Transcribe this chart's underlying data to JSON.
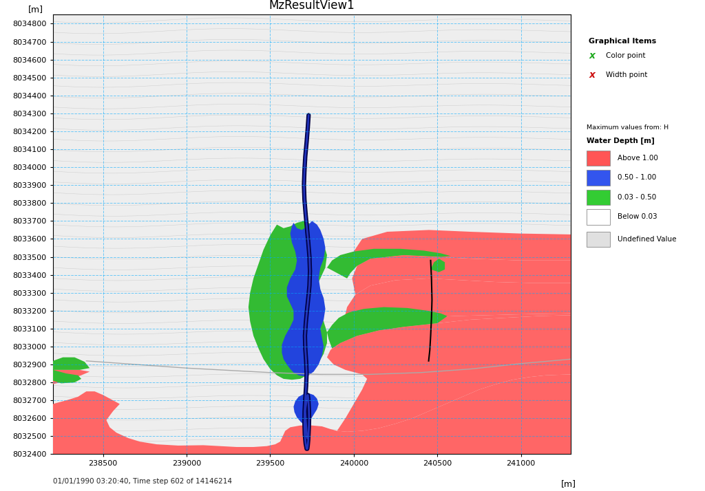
{
  "title": "MzResultView1",
  "xlabel": "[m]",
  "ylabel": "[m]",
  "xlim": [
    238200,
    241300
  ],
  "ylim": [
    8032400,
    8034850
  ],
  "xticks": [
    238500,
    239000,
    239500,
    240000,
    240500,
    241000
  ],
  "yticks": [
    8032400,
    8032500,
    8032600,
    8032700,
    8032800,
    8032900,
    8033000,
    8033100,
    8033200,
    8033300,
    8033400,
    8033500,
    8033600,
    8033700,
    8033800,
    8033900,
    8034000,
    8034100,
    8034200,
    8034300,
    8034400,
    8034500,
    8034600,
    8034700,
    8034800
  ],
  "background_color": "#ffffff",
  "grid_color": "#00aaff",
  "grid_alpha": 0.55,
  "footer_text": "01/01/1990 03:20:40, Time step 602 of 14146214",
  "legend1_title": "Graphical Items",
  "legend2_line1": "Maximum values from: H",
  "legend2_line2": "Water Depth [m]",
  "legend2_items": [
    {
      "label": "Above 1.00",
      "color": "#ff5555"
    },
    {
      "label": "0.50 - 1.00",
      "color": "#3355ee"
    },
    {
      "label": "0.03 - 0.50",
      "color": "#33cc33"
    },
    {
      "label": "Below 0.03",
      "color": "#ffffff"
    },
    {
      "label": "Undefined Value",
      "color": "#e0e0e0"
    }
  ],
  "colors": {
    "red_flood": "#ff6666",
    "blue_flood": "#2244dd",
    "green_flood": "#33bb33",
    "river_dark": "#000055",
    "river_mid": "#1133aa"
  },
  "map_bg": "#eeeeee",
  "topo_color": "#cccccc",
  "urban_color": "#dddddd"
}
